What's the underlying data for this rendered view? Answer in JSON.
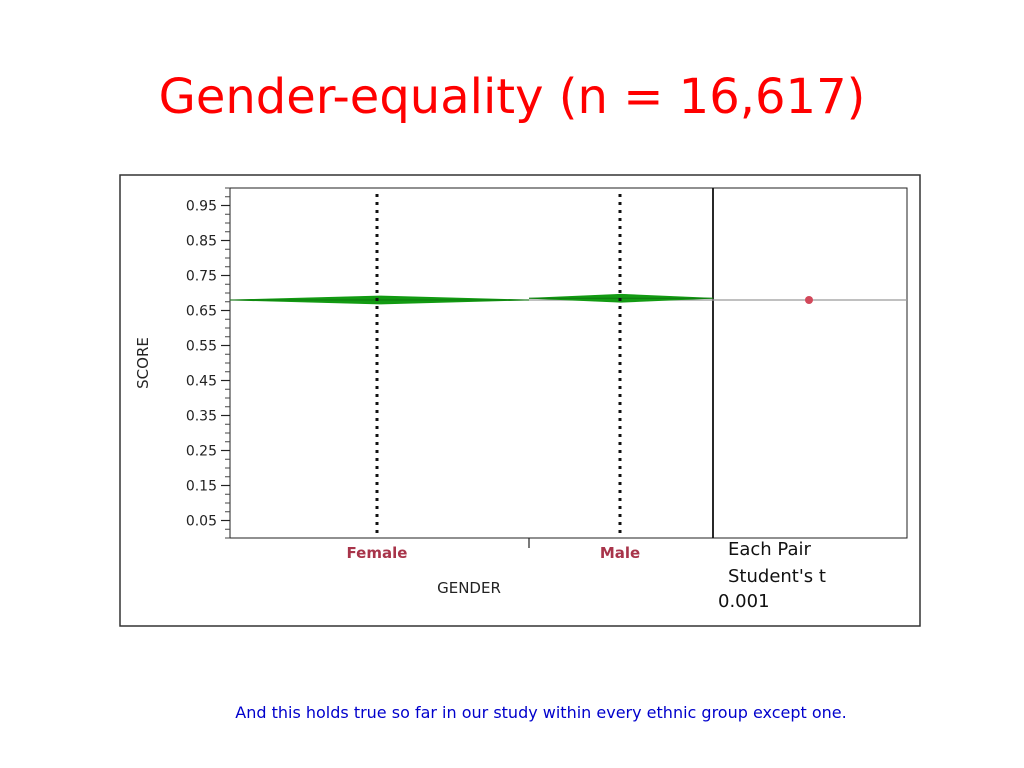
{
  "slide": {
    "title": "Gender-equality (n = 16,617)",
    "footnote": "And this holds true so far in our study within every ethnic group except one."
  },
  "chart_data": {
    "type": "scatter",
    "title": "",
    "xlabel": "GENDER",
    "ylabel": "SCORE",
    "categories": [
      "Female",
      "Male"
    ],
    "series": [
      {
        "values": [
          0.68,
          0.685
        ]
      }
    ],
    "overall_mean": 0.68,
    "ylim": [
      0.0,
      1.0
    ],
    "yticks": [
      "0.95",
      "0.85",
      "0.75",
      "0.65",
      "0.55",
      "0.45",
      "0.35",
      "0.25",
      "0.15",
      "0.05"
    ],
    "comparison": {
      "title_line1": "Each Pair",
      "title_line2": "Student's t",
      "alpha": "0.001",
      "circle_center": 0.68
    },
    "colors": {
      "means_diamond": "#139b13",
      "category_label": "#a8344a",
      "comparison_circle": "#d2485a"
    }
  }
}
